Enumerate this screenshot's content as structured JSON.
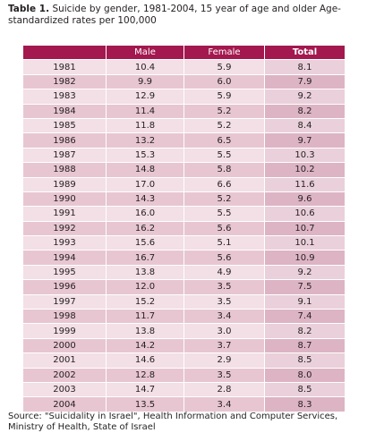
{
  "header": {
    "label": "Table 1.",
    "title": "Suicide by gender, 1981-2004, 15 year of age and older Age-standardized rates per 100,000"
  },
  "table": {
    "columns": [
      "",
      "Male",
      "Female",
      "Total"
    ],
    "rows": [
      [
        "1981",
        "10.4",
        "5.9",
        "8.1"
      ],
      [
        "1982",
        "9.9",
        "6.0",
        "7.9"
      ],
      [
        "1983",
        "12.9",
        "5.9",
        "9.2"
      ],
      [
        "1984",
        "11.4",
        "5.2",
        "8.2"
      ],
      [
        "1985",
        "11.8",
        "5.2",
        "8.4"
      ],
      [
        "1986",
        "13.2",
        "6.5",
        "9.7"
      ],
      [
        "1987",
        "15.3",
        "5.5",
        "10.3"
      ],
      [
        "1988",
        "14.8",
        "5.8",
        "10.2"
      ],
      [
        "1989",
        "17.0",
        "6.6",
        "11.6"
      ],
      [
        "1990",
        "14.3",
        "5.2",
        "9.6"
      ],
      [
        "1991",
        "16.0",
        "5.5",
        "10.6"
      ],
      [
        "1992",
        "16.2",
        "5.6",
        "10.7"
      ],
      [
        "1993",
        "15.6",
        "5.1",
        "10.1"
      ],
      [
        "1994",
        "16.7",
        "5.6",
        "10.9"
      ],
      [
        "1995",
        "13.8",
        "4.9",
        "9.2"
      ],
      [
        "1996",
        "12.0",
        "3.5",
        "7.5"
      ],
      [
        "1997",
        "15.2",
        "3.5",
        "9.1"
      ],
      [
        "1998",
        "11.7",
        "3.4",
        "7.4"
      ],
      [
        "1999",
        "13.8",
        "3.0",
        "8.2"
      ],
      [
        "2000",
        "14.2",
        "3.7",
        "8.7"
      ],
      [
        "2001",
        "14.6",
        "2.9",
        "8.5"
      ],
      [
        "2002",
        "12.8",
        "3.5",
        "8.0"
      ],
      [
        "2003",
        "14.7",
        "2.8",
        "8.5"
      ],
      [
        "2004",
        "13.5",
        "3.4",
        "8.3"
      ]
    ]
  },
  "footer": {
    "source": "Source: \"Suicidality in Israel\", Health Information and Computer Services, Ministry of Health, State of Israel"
  }
}
